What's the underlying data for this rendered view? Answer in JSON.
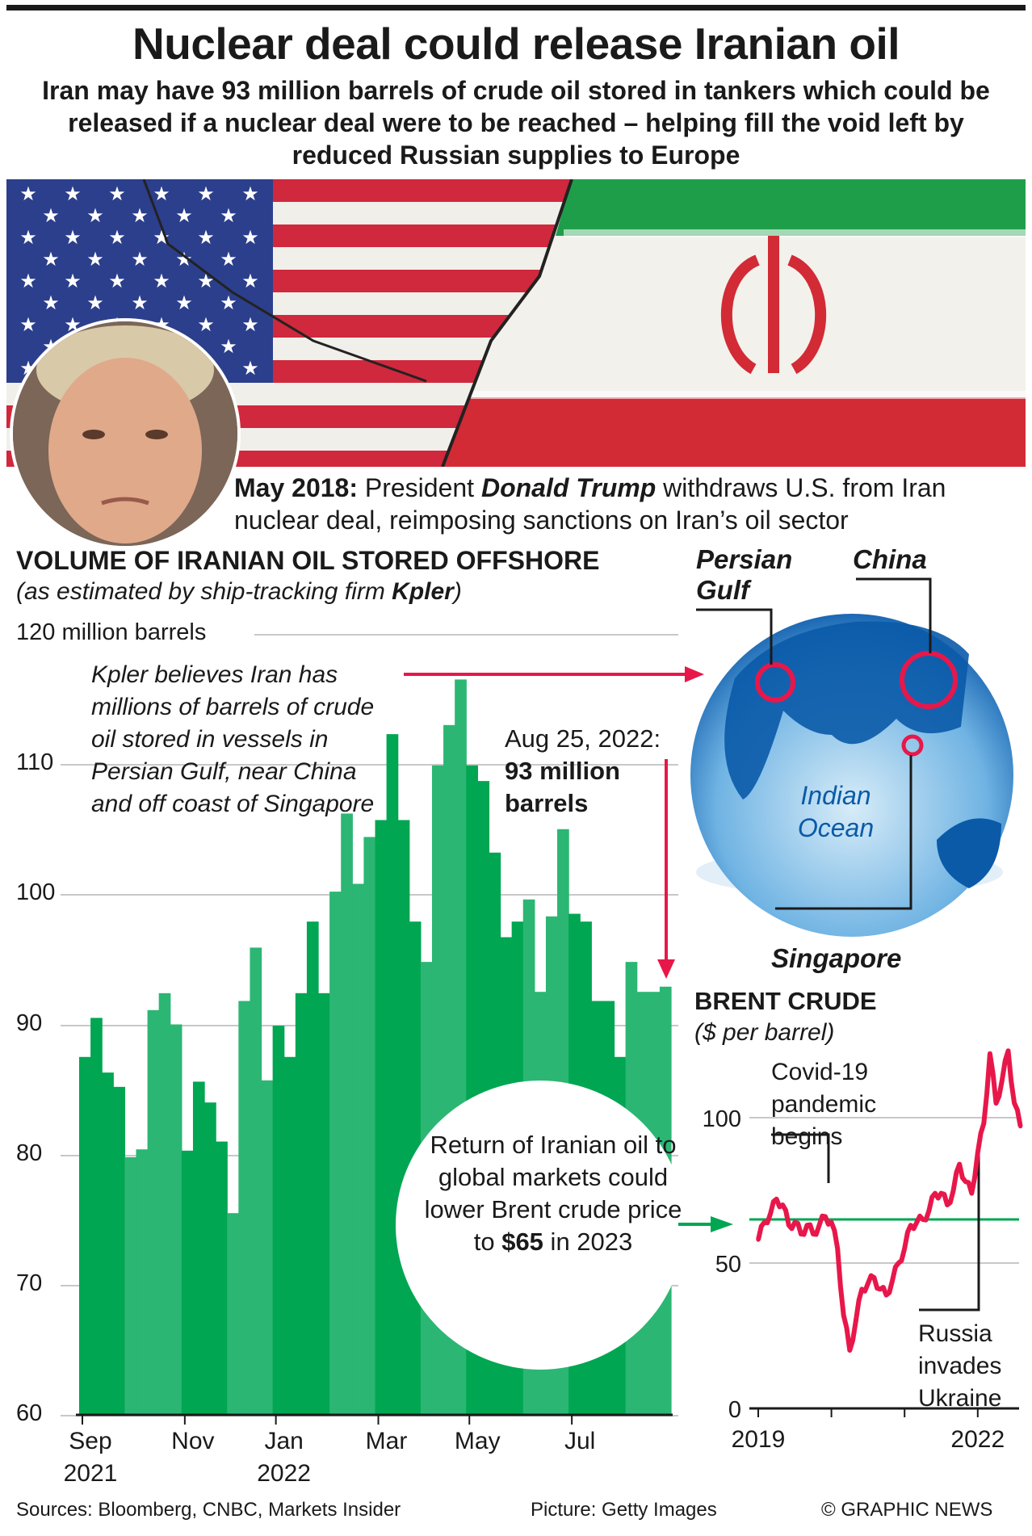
{
  "title": "Nuclear deal could release Iranian oil",
  "subtitle": "Iran may have 93 million barrels of crude oil stored in tankers which could be released if a nuclear deal were to be reached – helping fill the void left by reduced Russian supplies to Europe",
  "caption": {
    "date": "May 2018:",
    "pre": " President ",
    "name": "Donald Trump",
    "post": " withdraws U.S. from Iran nuclear deal, reimposing sanctions on Iran’s oil sector"
  },
  "colors": {
    "bar_dark": "#00a651",
    "bar_light": "#2bb673",
    "brent_line": "#e8174a",
    "arrow_red": "#e8174a",
    "target_line": "#00a651",
    "globe": "#0a5aa8"
  },
  "chart_data": [
    {
      "type": "bar",
      "title": "VOLUME OF IRANIAN OIL STORED OFFSHORE",
      "subtitle_pre": "(as estimated by ship-tracking firm ",
      "subtitle_bold": "Kpler",
      "subtitle_post": ")",
      "ylabel": "120 million barrels",
      "ylim": [
        60,
        120
      ],
      "yticks": [
        "60",
        "70",
        "80",
        "90",
        "100",
        "110"
      ],
      "grid": true,
      "xtick_labels": [
        [
          "Sep",
          "2021"
        ],
        [
          "Nov",
          ""
        ],
        [
          "Jan",
          "2022"
        ],
        [
          "Mar",
          ""
        ],
        [
          "May",
          ""
        ],
        [
          "Jul",
          ""
        ]
      ],
      "months": [
        "Sep",
        "Sep",
        "Sep",
        "Sep",
        "Oct",
        "Oct",
        "Oct",
        "Oct",
        "Oct",
        "Nov",
        "Nov",
        "Nov",
        "Nov",
        "Dec",
        "Dec",
        "Dec",
        "Dec",
        "Jan",
        "Jan",
        "Jan",
        "Jan",
        "Jan",
        "Feb",
        "Feb",
        "Feb",
        "Feb",
        "Mar",
        "Mar",
        "Mar",
        "Mar",
        "Apr",
        "Apr",
        "Apr",
        "Apr",
        "May",
        "May",
        "May",
        "May",
        "May",
        "Jun",
        "Jun",
        "Jun",
        "Jun",
        "Jul",
        "Jul",
        "Jul",
        "Jul",
        "Jul",
        "Aug",
        "Aug",
        "Aug",
        "Aug"
      ],
      "values": [
        87.5,
        90.5,
        86.3,
        85.2,
        79.8,
        80.4,
        91.1,
        92.4,
        90.0,
        80.3,
        85.6,
        84.0,
        81.0,
        75.5,
        91.8,
        95.9,
        85.7,
        89.9,
        87.5,
        92.4,
        97.9,
        92.4,
        100.2,
        106.2,
        100.8,
        104.4,
        105.7,
        112.3,
        105.7,
        97.9,
        94.8,
        109.9,
        113.0,
        116.5,
        109.9,
        108.7,
        103.2,
        96.7,
        97.9,
        99.6,
        92.5,
        98.3,
        105.0,
        98.5,
        97.9,
        91.8,
        91.8,
        87.5,
        94.8,
        92.5,
        92.5,
        92.9
      ],
      "annotations": {
        "kpler": "Kpler believes Iran has millions of barrels of crude oil stored in vessels in Persian Gulf, near China and off coast of Singapore",
        "latest_date": "Aug 25, 2022:",
        "latest_value": "93 million barrels",
        "bubble_pre": "Return of Iranian oil to global markets could lower Brent crude price to ",
        "bubble_bold": "$65",
        "bubble_post": " in 2023"
      }
    },
    {
      "type": "line",
      "title": "BRENT CRUDE",
      "subtitle": "($ per barrel)",
      "ylim": [
        0,
        130
      ],
      "yticks": [
        "0",
        "50",
        "100"
      ],
      "xtick_labels": [
        "2019",
        "2022"
      ],
      "grid": true,
      "target_line": 65,
      "x": [
        "2019-01",
        "2019-02",
        "2019-03",
        "2019-04",
        "2019-05",
        "2019-06",
        "2019-07",
        "2019-08",
        "2019-09",
        "2019-10",
        "2019-11",
        "2019-12",
        "2020-01",
        "2020-02",
        "2020-03",
        "2020-04",
        "2020-05",
        "2020-06",
        "2020-07",
        "2020-08",
        "2020-09",
        "2020-10",
        "2020-11",
        "2020-12",
        "2021-01",
        "2021-02",
        "2021-03",
        "2021-04",
        "2021-05",
        "2021-06",
        "2021-07",
        "2021-08",
        "2021-09",
        "2021-10",
        "2021-11",
        "2021-12",
        "2022-01",
        "2022-02",
        "2022-03",
        "2022-04",
        "2022-05",
        "2022-06",
        "2022-07",
        "2022-08"
      ],
      "values": [
        58,
        64,
        67,
        72,
        70,
        63,
        64,
        60,
        63,
        60,
        63,
        66,
        64,
        55,
        32,
        20,
        30,
        41,
        43,
        45,
        41,
        39,
        44,
        50,
        55,
        63,
        64,
        65,
        68,
        74,
        74,
        70,
        75,
        84,
        78,
        74,
        88,
        98,
        122,
        105,
        113,
        123,
        105,
        97
      ],
      "annotations": {
        "covid": "Covid-19 pandemic begins",
        "russia": "Russia invades Ukraine"
      }
    }
  ],
  "map": {
    "labels": [
      "Persian Gulf",
      "China",
      "Singapore"
    ],
    "ocean": "Indian Ocean"
  },
  "footer": {
    "sources": "Sources: Bloomberg, CNBC, Markets Insider",
    "picture": "Picture: Getty Images",
    "credit": "© GRAPHIC NEWS"
  }
}
